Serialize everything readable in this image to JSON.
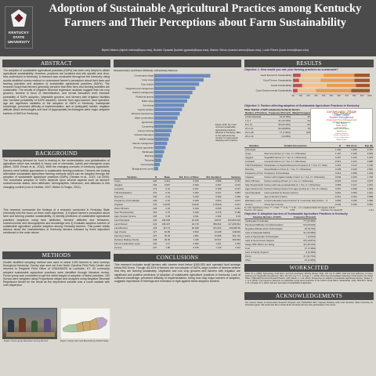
{
  "header": {
    "logo_text": [
      "KENTUCKY",
      "STATE",
      "UNIVERSITY"
    ],
    "title": "Adoption of Sustainable Agricultural Practices among Kentucky Farmers and Their Perceptions about Farm Sustainability",
    "authors": "Bijesh Mishra (bijesh.mishra@kysu.edu), Buddhi Gyawali (buddhi.gyawali@kysu.edu), Marion Simon (marion.simon@kysu.edu), Louie Rivers (louie.rivers@kysu.edu)"
  },
  "abstract": {
    "heading": "ABSTRACT",
    "text": "The adoption of sustainable agricultural practices (SAPs) has been very helpful to attain agricultural sustainability. However, practices are localized and site specific and, thus, less understood in Kentucky. A research was conducted throughout the Kentucky using double stratified survey method to understand farmer's perception about their farm and farming practices and adoption of sustainable agricultural practices (SAPs). The research found that farmers generally perceive that their farm and farming activities are sustainable. The results of negative binomial regression analysis suggest that row crop growers, farmers in favor of diversification, and formal education level increase probability of SAPs adoption. Vegetable growers, and farmers with irrigation facilities also increase probability of SAPs adoption. Income from agro-tourism, land operated, age are significant variables of the adoption of SAPs in Kentucky. Inadequate knowledge, perceived difficulty of implementation, lack of (adequate) market, negative attitude about technologies and lack of (appropriate) technologies were major adoption barriers of SAPs in Kentucky."
  },
  "background": {
    "heading": "BACKGROUND",
    "text1": "The increasing demand for food is leading to the modernization and globalization of agriculture which has resulted in heavy use of chemicals, hybrid and transgenic crops (Altieri, 2009; Rouch et al., 2010). With the changing scenario of Kentucky agriculture, farmers need holistic approaches to sustainable farming practices. Farmers are looking alternative sustainable agriculture farming methods which can be adopted through the adoption of sustainable agriculture practices (SAPs) (Tanaka et al., 2012; Lal 2009). The successful adoption of SAPs depends upon several aspects such as farmers' socioeconomic status, farm attributes, demographics, behaviors, and attitudes in this changing context (Low & Hedrick, 2007; Weber & Feagin, 2011).",
    "text2": "This research summarize the findings of a research conducted in Kentucky State University with the focus on three main objectives: 1) Explore farmer's perception about farm and farming practice sustainability, 2) identify predictors of sustainable agricultural practices adoptions using farm attributes, farmers' attitudes and behaviors, socioeconomic and demographics and knowledge and 3) Evaluate adoption barriers of sustainable agriculture practice adoption among Kentucky farmers. This poster briefly discuss about the characteristics of Kentucky farmers followed by three objectives mentioned in the order above."
  },
  "methods": {
    "heading": "METHODS",
    "text": "Double stratified sampling method was used to select 1000 farmers to send surveys throughout Kentucky. Survey was sent out from North Carolina First Field Center and returned to Regional Field Office of USDA/NASS at Louisville, KY. 33 commonly adopted sustainable agriculture practices were identified through literature review. Focus group was conducted to get the initial insight of adoption of listed practices. 230 Survey were weighted using Proportional weight and analyzed using Negative Binomial Regression Model for the result as the dependent variable was a count variable with over-dispersion.",
    "figure1_caption": "Figure: Focus group discussion among farmers",
    "figure2_caption": "Figure: Survey Sent and Received (by District Map)"
  },
  "middle": {
    "chart_title": "Characteristics and Farm Attributes of Kentucky Farmers",
    "note": "Figure (left): the most common sustainable agricultural practices adopted in Kentucky. Bars to the right show the number of respondents adopting each practice.",
    "stats_table": {
      "headers": [
        "Variables",
        "N",
        "Mean",
        "Std. Error of Mean",
        "Std. Deviation",
        "Variance"
      ],
      "rows": [
        [
          "Crops",
          "226",
          "0.314",
          "0.025",
          "0.586",
          "0.151"
        ],
        [
          "Veggies",
          "226",
          "0.097",
          "0.034",
          "0.297",
          "0.223"
        ],
        [
          "Livestock",
          "271",
          "0.42",
          "0.027",
          "0.788",
          "0.157"
        ],
        [
          "TNF Participation",
          "276",
          "0.43",
          "0.364",
          "0.037",
          "0.987"
        ],
        [
          "Diversity",
          "230",
          "0.44",
          "0.329",
          "0.482",
          "0.365"
        ],
        [
          "Frequency of Knowledge",
          "239",
          "0.42",
          "0.029",
          "0.503",
          "0.207"
        ],
        [
          "Irrigation",
          "234",
          "0.0278",
          "0.0129",
          "0.16128",
          "0.027"
        ],
        [
          "Work Off-Farm",
          "226",
          "0.43",
          "0.033",
          "0.059",
          "0.251"
        ],
        [
          "Sole Proprietorship",
          "216",
          "0.75",
          "0.029",
          "0.476",
          "0.186"
        ],
        [
          "Agro-Tourism Income",
          "225",
          "0.03",
          "0.011",
          "0.182",
          "0.03"
        ],
        [
          "Land Operated",
          "220",
          "169.548",
          "23.136",
          "349.97",
          "102,864.603"
        ],
        [
          "Land Owned",
          "224",
          "166.337",
          "24.179",
          "359.834",
          "117,206.544"
        ],
        [
          "Land Rented",
          "229",
          "121.74",
          "22.048",
          "331.644",
          "109,966.60"
        ],
        [
          "Age (Years)",
          "227",
          "62.85",
          "0.810",
          "12.438",
          "149.819"
        ],
        [
          "Farming (Years)",
          "227",
          "35.28",
          "1.051",
          "16.685",
          "261.791"
        ],
        [
          "Decision Making (Years)",
          "228",
          "29.06",
          "1.195",
          "16.547",
          "266.564"
        ],
        [
          "Farmer's Education Level",
          "226",
          "3.17",
          "0.069",
          "1.221",
          "1.354"
        ],
        [
          "Income",
          "237",
          "1.86",
          "0.155",
          "1.120",
          "1.512"
        ]
      ]
    }
  },
  "barchart": {
    "chart_data": {
      "type": "bar",
      "orientation": "horizontal",
      "categories": [
        "Conservation tillage",
        "Cover crops",
        "Crop rotation",
        "Integrated pest management",
        "Nutrient management",
        "Rotational grazing",
        "Buffer strips",
        "Soil testing",
        "Organic fertilizer",
        "Reduced chemical use",
        "Water conservation",
        "Agroforestry",
        "Composting",
        "Contour farming",
        "Grassed waterways",
        "Wildlife habitat",
        "Manure management",
        "Precision agriculture",
        "Windbreaks",
        "Mulching",
        "Terracing",
        "Intercropping",
        "Biological pest control"
      ],
      "values": [
        150,
        132,
        120,
        110,
        102,
        95,
        88,
        80,
        74,
        68,
        62,
        56,
        50,
        46,
        42,
        38,
        34,
        30,
        26,
        22,
        18,
        14,
        10
      ],
      "xlim": [
        0,
        160
      ]
    }
  },
  "results": {
    "heading": "RESULTS",
    "obj1_title": "Objective 1: How would you rate your farming practices as sustainable?",
    "obj1_chart": {
      "chart_data": {
        "type": "bar",
        "orientation": "horizontal-stacked",
        "categories": [
          "Good Economic Sustainability",
          "Good Farmer Sustainability",
          "Social Sustainability",
          "Good Environmental Sustainability"
        ],
        "series": [
          {
            "name": "",
            "values": [
              10,
              8,
              12,
              6
            ]
          },
          {
            "name": "",
            "values": [
              30,
              28,
              32,
              24
            ]
          },
          {
            "name": "",
            "values": [
              40,
              44,
              38,
              46
            ]
          },
          {
            "name": "",
            "values": [
              20,
              20,
              18,
              24
            ]
          }
        ],
        "xlim": [
          0,
          100
        ],
        "xticks": [
          "0%",
          "10%",
          "20%",
          "30%",
          "40%",
          "50%",
          "60%",
          "70%",
          "80%",
          "90%",
          "100%"
        ]
      }
    },
    "obj2_title": "Objective 2: Factors affecting adoption of Sustainable Agriculture Practices in Kentucky",
    "sap_table_title": "Table: Number of SAPs adopted by Kentucky farmers",
    "sap_table": {
      "headers": [
        "Number of Practices",
        "Frequency (Percent)",
        "Weight Frequency"
      ],
      "rows": [
        [
          "0 (Not Adopted)",
          "19 (9.10%)",
          "30.3"
        ],
        [
          "1 to 7",
          "31 (12.33%)",
          "34.7"
        ],
        [
          "8 to 14",
          "65 (33.33%)",
          "53.4"
        ],
        [
          "15 to 21",
          "64 (29.80%)",
          "76.6"
        ],
        [
          "22 to 28",
          "17 (7.84%)",
          "109.0"
        ],
        [
          "28 to 33",
          "(10.08%)",
          ""
        ]
      ]
    },
    "word_cloud": [
      "Conservation Tillage",
      "Crop Rotation",
      "Cover Crops",
      "Nutrient Management",
      "Integrated Pest Management",
      "Rotational Grazing",
      "Soil Testing",
      "Buffer Strips",
      "Composting",
      "Water Conservation",
      "Agroforestry",
      "Organic Fertilizer",
      "Manure Management",
      "Precision Agriculture",
      "Wildlife Habitat",
      "Windbreaks"
    ],
    "reg_table": {
      "headers": [
        "Variables",
        "Variable Descriptions",
        "B",
        "Std. Error",
        "Exp (B)"
      ],
      "rows": [
        [
          "(Intercept)",
          "",
          "1.330",
          "0.258",
          "3.782"
        ],
        [
          "Crops",
          "Row crop farmer (1 = Yes, 0 = Otherwise)",
          "1.307",
          "0.168",
          "3.695"
        ],
        [
          "Veggies",
          "Vegetable farmer (1 = Yes, 0 = Otherwise)",
          "0.257",
          "0.166",
          "1.293"
        ],
        [
          "Livestock",
          "Livestock farmer (1 = Yes, 0 = Otherwise)",
          "-0.012",
          "0.104",
          "0.988"
        ],
        [
          "TNF Participation",
          "Participation in Natural Resource Programs (1 = Yes, 0 = Otherwise)",
          "0.101",
          "0.112",
          "1.106"
        ],
        [
          "Diversity",
          "Diversification of farm (1 = Yes, 0 = Otherwise)",
          "0.436",
          "0.109",
          "1.546"
        ],
        [
          "Frequency of Knowledge",
          "Frequency of Knowledge",
          "0.214",
          "0.058",
          "1.239"
        ],
        [
          "Irrigation",
          "Farmer with irrigation facility in farm (1 = Yes, 0 = Otherwise)",
          "0.546",
          "0.203",
          "1.726"
        ],
        [
          "Work Off-Farm",
          "Farmer working off farm (1 = Yes, 0 = Otherwise)",
          "-0.025",
          "0.112",
          "0.975"
        ],
        [
          "Sole Proprietorship",
          "Farmer with sole proprietorship (1 = Yes, 0 = Otherwise)",
          "0.059",
          "0.127",
          "1.061"
        ],
        [
          "Agro-tourism Income",
          "Farmers having income from agro-tourism (1 = Yes, 0 = Otherwise)",
          "0.657",
          "0.268",
          "1.929"
        ],
        [
          "Land Operated",
          "Land operated by farmers (Acres)",
          "0.001",
          "0.000",
          "1.001"
        ],
        [
          "Age",
          "Age of farmers (Years)",
          "-0.012",
          "0.004",
          "0.988"
        ],
        [
          "Education Level",
          "Formal education level of farmer (1 = less than high school ... 6 = graduate degree or professional)",
          "0.082",
          "0.045",
          "1.086"
        ],
        [
          "Income",
          "Gross farm income",
          "-0.046",
          "0.048",
          "0.955"
        ]
      ],
      "footnote": "N = 230. Significance codes: *** < 0.001, ** < 0.01, * < 0.05, . < 0.1. Likelihood Ratio Chi-Square: 129.45",
      "stats": [
        "Pearson Chi-square",
        "1.363",
        "Pearson Chi-square/df",
        "1.112"
      ]
    },
    "obj3_title": "Objective 3: Adoption barriers of Sustainable Agriculture Practices in Kentucky",
    "barrier_table": {
      "headers": [
        "Adoption Barriers of SAPs",
        "Frequency (Percent)"
      ],
      "rows": [
        [
          "Inadequate Knowledge",
          "77 (33.48%)"
        ],
        [
          "Perceived Difficulty of Implementation",
          "53 (23.04%)"
        ],
        [
          "Negative Attitude about Technologies",
          "20 (8.70%)"
        ],
        [
          "Lack of Adequate Market",
          "31 (13.48%)"
        ],
        [
          "Lack of Appropriate Technologies",
          "7 (3.04%)"
        ],
        [
          "Lack of Government Support",
          "25 (10.87%)"
        ],
        [
          "Happy With What I am Doing",
          "44 (19.13%)"
        ],
        [
          "Cost",
          "17 (7.39%)"
        ],
        [
          "Lack of Family Support",
          "8 (3.48%)"
        ],
        [
          "Policy",
          "27 (11.74%)"
        ],
        [
          "Other",
          "10 (4.35%)"
        ]
      ]
    }
  },
  "conclusions": {
    "heading": "CONCLUSIONS",
    "text": "This research includes small farmers with income level below $150,000 and operated land acreage below 500 Acres. Though, 65.32% of farmers are non-adopter of SAPs, large number of farmers believe that they are farming sustainably. Vegetable and row crop growers and farmers with irrigation are significant and positive predictors of adoption of sustainable agriculture practices in Kentucky. Lack of sufficient knowledge, perceived difficulty of implementation, being how may major barriers of adoption, suggests importance of trainings and extension to fight against these adoption barriers."
  },
  "workscited": {
    "heading": "WORKSCITED",
    "text": "Altieri, M. A. (2009). Agroecology, small farms, and food sovereignty. Monthly Review, 61(3), 102. Lal, R. (2009). Soils and food sufficiency. A review. Agronomy for Sustainable Development, 29(1), 113-133. Low, S. A., & Vogel, S. J. (2011). Direct and intermediated marketing of local foods in the United States. USDA-ERS Economic Research Report, (128). Rauch, C. et al. (2010). Perspectives on adoption of sustainable agricultural practices. Tanaka, D. L. et al. (2012). Crop sequence influences on sustainable spring wheat production in the northern Great Plains. Sustainability, 4(10), 2563-2571. Weber, C. M., & Feagin, R. A. (2011). Farmers' perception of sustainability of agriculture."
  },
  "acknowledgements": {
    "heading": "ACKNOWLEDGEMENTS",
    "text": "Our sincere thanks to Evans-Allen Research Program and USDA/NIFA 2017 Capacity Building Grant and Kentucky State University for financial support. We would also like to thank all the Kentucky farmers who participated in the survey."
  }
}
